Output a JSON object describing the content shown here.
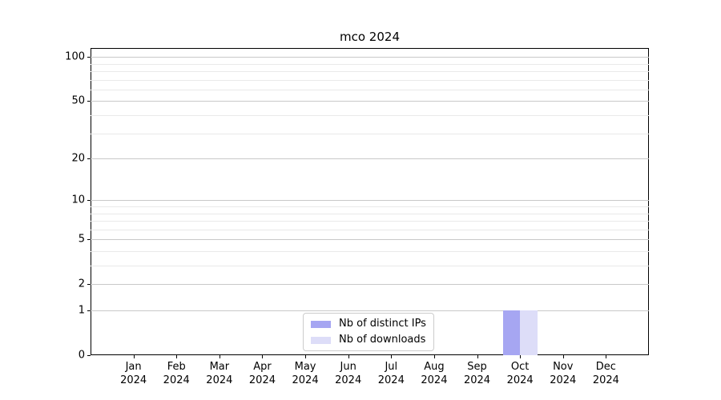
{
  "chart_data": {
    "type": "bar",
    "title": "mco 2024",
    "x_tick_labels": [
      {
        "line1": "Jan",
        "line2": "2024"
      },
      {
        "line1": "Feb",
        "line2": "2024"
      },
      {
        "line1": "Mar",
        "line2": "2024"
      },
      {
        "line1": "Apr",
        "line2": "2024"
      },
      {
        "line1": "May",
        "line2": "2024"
      },
      {
        "line1": "Jun",
        "line2": "2024"
      },
      {
        "line1": "Jul",
        "line2": "2024"
      },
      {
        "line1": "Aug",
        "line2": "2024"
      },
      {
        "line1": "Sep",
        "line2": "2024"
      },
      {
        "line1": "Oct",
        "line2": "2024"
      },
      {
        "line1": "Nov",
        "line2": "2024"
      },
      {
        "line1": "Dec",
        "line2": "2024"
      }
    ],
    "series": [
      {
        "name": "Nb of distinct IPs",
        "color": "#a6a6f2",
        "values": [
          0,
          0,
          0,
          0,
          0,
          0,
          0,
          0,
          0,
          1,
          0,
          0
        ]
      },
      {
        "name": "Nb of downloads",
        "color": "#ddddf8",
        "values": [
          0,
          0,
          0,
          0,
          0,
          0,
          0,
          0,
          0,
          1,
          0,
          0
        ]
      }
    ],
    "y_axis": {
      "scale": "log1p",
      "major_ticks": [
        0,
        1,
        2,
        5,
        10,
        20,
        50,
        100
      ],
      "minor_gridlines": [
        3,
        4,
        6,
        7,
        8,
        9,
        30,
        40,
        60,
        70,
        80,
        90
      ],
      "ylim": [
        0,
        115
      ]
    },
    "legend": {
      "position": "lower center",
      "entries": [
        "Nb of distinct IPs",
        "Nb of downloads"
      ]
    },
    "grid": true,
    "colors": {
      "major_grid": "#c9c9c9",
      "minor_grid": "#e9e9e9",
      "spine": "#000000",
      "text": "#000000",
      "background": "#ffffff",
      "legend_border": "#cccccc"
    }
  }
}
